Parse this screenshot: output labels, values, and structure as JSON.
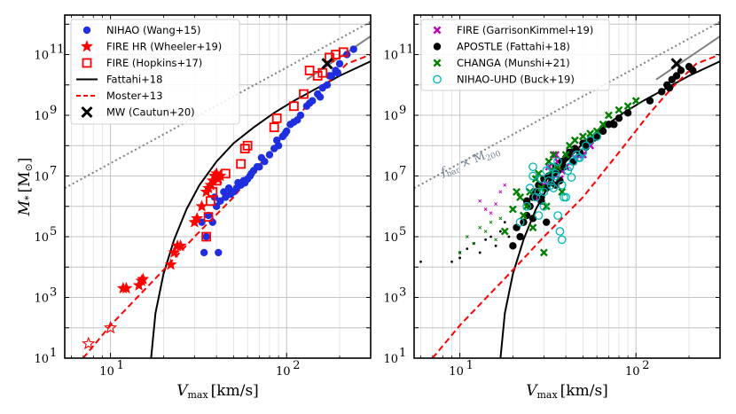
{
  "chart_data": [
    {
      "type": "scatter",
      "xscale": "log",
      "yscale": "log",
      "xlim": [
        5.5,
        300
      ],
      "ylim": [
        10,
        2000000000000.0
      ],
      "xlabel": "V_max [km/s]",
      "ylabel": "M_* [M_⊙]",
      "ylabel_parts": {
        "M": "M",
        "sub": "*",
        "bracket": "[M",
        "sun": "⊙",
        "close": "]"
      },
      "xlabel_parts": {
        "V": "V",
        "sub": "max",
        "unit": "[km/s]"
      },
      "xticks": [
        {
          "v": 10,
          "base": "10",
          "exp": "1"
        },
        {
          "v": 100,
          "base": "10",
          "exp": "2"
        }
      ],
      "yticks": [
        {
          "v": 10,
          "base": "10",
          "exp": "1"
        },
        {
          "v": 1000,
          "base": "10",
          "exp": "3"
        },
        {
          "v": 100000,
          "base": "10",
          "exp": "5"
        },
        {
          "v": 10000000,
          "base": "10",
          "exp": "7"
        },
        {
          "v": 1000000000,
          "base": "10",
          "exp": "9"
        },
        {
          "v": 100000000000,
          "base": "10",
          "exp": "11"
        }
      ],
      "legend": [
        {
          "label": "NIHAO (Wang+15)",
          "marker": "circle",
          "color": "#1f2fe0"
        },
        {
          "label": "FIRE HR (Wheeler+19)",
          "marker": "star",
          "color": "#ff0000"
        },
        {
          "label": "FIRE (Hopkins+17)",
          "marker": "square-open",
          "color": "#ff0000"
        },
        {
          "label": "Fattahi+18",
          "marker": "line",
          "color": "#000000"
        },
        {
          "label": "Moster+13",
          "marker": "dashed",
          "color": "#ff0000"
        },
        {
          "label": "MW (Cautun+20)",
          "marker": "x",
          "color": "#000000"
        }
      ],
      "series": [
        {
          "name": "NIHAO (Wang+15)",
          "marker": "circle",
          "color": "#1f2fe0",
          "x": [
            34,
            35,
            38,
            40,
            42,
            45,
            48,
            50,
            52,
            55,
            58,
            60,
            62,
            65,
            70,
            75,
            80,
            85,
            90,
            95,
            100,
            105,
            110,
            120,
            130,
            140,
            150,
            160,
            170,
            180,
            190,
            200,
            220,
            240,
            36,
            39,
            44,
            47,
            53,
            57,
            63,
            68,
            72,
            88,
            98,
            115,
            135,
            155,
            175,
            195,
            33,
            41
          ],
          "y": [
            30000.0,
            100000.0,
            300000.0,
            1000000.0,
            1500000.0,
            2000000.0,
            2500000.0,
            3000000.0,
            4000000.0,
            5000000.0,
            6000000.0,
            8000000.0,
            10000000.0,
            15000000.0,
            20000000.0,
            30000000.0,
            50000000.0,
            80000000.0,
            100000000.0,
            200000000.0,
            300000000.0,
            500000000.0,
            600000000.0,
            1000000000.0,
            2000000000.0,
            3000000000.0,
            5000000000.0,
            8000000000.0,
            10000000000.0,
            20000000000.0,
            30000000000.0,
            50000000000.0,
            100000000000.0,
            150000000000.0,
            500000.0,
            2000000.0,
            3000000.0,
            4000000.0,
            6000000.0,
            7000000.0,
            12000000.0,
            20000000.0,
            40000000.0,
            150000000.0,
            250000000.0,
            700000000.0,
            2500000000.0,
            4000000000.0,
            20000000000.0,
            25000000000.0,
            300000.0,
            30000.0
          ]
        },
        {
          "name": "FIRE HR (Wheeler+19)",
          "marker": "star",
          "color": "#ff0000",
          "x": [
            11.8,
            12.3,
            14.5,
            15,
            15.3,
            22,
            23,
            24,
            25,
            30,
            31,
            33,
            35,
            36,
            37,
            38,
            39,
            40,
            41,
            42
          ],
          "y": [
            2000.0,
            2000.0,
            2500.0,
            3500.0,
            4000.0,
            12000.0,
            30000.0,
            50000.0,
            50000.0,
            300000.0,
            400000.0,
            1000000.0,
            3000000.0,
            4000000.0,
            5000000.0,
            7000000.0,
            10000000.0,
            12000000.0,
            8000000.0,
            10000000.0
          ]
        },
        {
          "name": "FIRE HR open",
          "marker": "star-open",
          "color": "#ff0000",
          "x": [
            7.5,
            10
          ],
          "y": [
            30,
            100
          ]
        },
        {
          "name": "FIRE (Hopkins+17)",
          "marker": "square-open",
          "color": "#ff0000",
          "x": [
            35,
            36,
            37,
            38,
            40,
            45,
            55,
            58,
            60,
            85,
            88,
            110,
            125,
            135,
            150,
            160,
            175,
            190,
            210
          ],
          "y": [
            100000.0,
            450000.0,
            1500000.0,
            3000000.0,
            7000000.0,
            12000000.0,
            25000000.0,
            80000000.0,
            100000000.0,
            400000000.0,
            800000000.0,
            2000000000.0,
            5000000000.0,
            30000000000.0,
            20000000000.0,
            25000000000.0,
            80000000000.0,
            100000000000.0,
            120000000000.0
          ]
        },
        {
          "name": "MW (Cautun+20)",
          "marker": "x",
          "color": "#000000",
          "x": [
            170
          ],
          "y": [
            50000000000.0
          ]
        }
      ],
      "lines": [
        {
          "name": "Fattahi+18",
          "style": "solid",
          "color": "#000000",
          "x": [
            17,
            18,
            20,
            23,
            27,
            32,
            40,
            50,
            65,
            85,
            110,
            150,
            200,
            300
          ],
          "y": [
            10,
            300,
            6000.0,
            80000.0,
            800000.0,
            5000000.0,
            30000000.0,
            120000000.0,
            400000000.0,
            1200000000.0,
            3000000000.0,
            8000000000.0,
            20000000000.0,
            60000000000.0
          ]
        },
        {
          "name": "Moster+13",
          "style": "dashed",
          "color": "#ff0000",
          "x": [
            7,
            10,
            20,
            30,
            50,
            80,
            120,
            160,
            220,
            300
          ],
          "y": [
            10,
            120,
            8000.0,
            100000.0,
            2000000.0,
            60000000.0,
            1200000000.0,
            8000000000.0,
            50000000000.0,
            100000000000.0
          ]
        },
        {
          "name": "f_bar x M200",
          "style": "dotted",
          "color": "#808080",
          "x": [
            5.5,
            300
          ],
          "y": [
            4000000.0,
            1200000000000.0
          ]
        },
        {
          "name": "gray solid",
          "style": "solid",
          "color": "#808080",
          "x": [
            130,
            300
          ],
          "y": [
            15000000000.0,
            400000000000.0
          ]
        }
      ]
    },
    {
      "type": "scatter",
      "xscale": "log",
      "yscale": "log",
      "xlim": [
        5.5,
        300
      ],
      "ylim": [
        10,
        2000000000000.0
      ],
      "xlabel": "V_max [km/s]",
      "ylabel": "",
      "xlabel_parts": {
        "V": "V",
        "sub": "max",
        "unit": "[km/s]"
      },
      "xticks": [
        {
          "v": 10,
          "base": "10",
          "exp": "1"
        },
        {
          "v": 100,
          "base": "10",
          "exp": "2"
        }
      ],
      "yticks": [
        {
          "v": 10,
          "base": "10",
          "exp": "1"
        },
        {
          "v": 1000,
          "base": "10",
          "exp": "3"
        },
        {
          "v": 100000,
          "base": "10",
          "exp": "5"
        },
        {
          "v": 10000000,
          "base": "10",
          "exp": "7"
        },
        {
          "v": 1000000000,
          "base": "10",
          "exp": "9"
        },
        {
          "v": 100000000000,
          "base": "10",
          "exp": "11"
        }
      ],
      "annotation": {
        "text": "f",
        "sub": "bar",
        "mid": " × M",
        "sub2": "200",
        "x": 8,
        "y": 10000000.0,
        "angle": -22
      },
      "legend": [
        {
          "label": "FIRE (GarrisonKimmel+19)",
          "marker": "x-thin",
          "color": "#c000c0"
        },
        {
          "label": "APOSTLE (Fattahi+18)",
          "marker": "circle",
          "color": "#000000"
        },
        {
          "label": "CHANGA (Munshi+21)",
          "marker": "x-thin",
          "color": "#008000"
        },
        {
          "label": "NIHAO-UHD (Buck+19)",
          "marker": "circle-open",
          "color": "#00b5b5"
        }
      ],
      "series": [
        {
          "name": "FIRE (GarrisonKimmel+19)",
          "marker": "x-thin",
          "color": "#c000c0",
          "x": [
            32,
            33,
            35,
            36,
            38,
            40,
            42,
            45,
            48,
            50,
            55,
            30,
            28,
            34,
            37,
            44
          ],
          "y": [
            20000000.0,
            10000000.0,
            50000000.0,
            30000000.0,
            15000000.0,
            20000000.0,
            60000000.0,
            40000000.0,
            50000000.0,
            50000000.0,
            100000000.0,
            5000000.0,
            2000000.0,
            12000000.0,
            8000000.0,
            30000000.0
          ]
        },
        {
          "name": "APOSTLE (Fattahi+18)",
          "marker": "circle",
          "color": "#000000",
          "x": [
            20,
            21,
            22,
            23,
            24,
            25,
            26,
            27,
            28,
            29,
            30,
            31,
            32,
            33,
            34,
            35,
            36,
            38,
            40,
            42,
            45,
            48,
            50,
            55,
            60,
            65,
            70,
            80,
            90,
            120,
            140,
            150,
            160,
            170,
            180,
            200,
            210,
            24,
            26,
            29,
            31,
            35,
            37,
            39,
            44,
            52,
            58,
            75,
            155
          ],
          "y": [
            50000.0,
            200000.0,
            100000.0,
            300000.0,
            500000.0,
            1000000.0,
            2000000.0,
            3000000.0,
            5000000.0,
            2000000.0,
            8000000.0,
            4000000.0,
            10000000.0,
            6000000.0,
            12000000.0,
            20000000.0,
            15000000.0,
            30000000.0,
            40000000.0,
            60000000.0,
            80000000.0,
            60000000.0,
            120000000.0,
            150000000.0,
            200000000.0,
            300000000.0,
            500000000.0,
            800000000.0,
            1200000000.0,
            3000000000.0,
            6000000000.0,
            10000000000.0,
            15000000000.0,
            20000000000.0,
            30000000000.0,
            40000000000.0,
            30000000000.0,
            1500000.0,
            400000.0,
            1500000.0,
            300000.0,
            5000000.0,
            7000000.0,
            20000000.0,
            30000000.0,
            90000000.0,
            180000000.0,
            500000000.0,
            8000000000.0
          ]
        },
        {
          "name": "APOSTLE small",
          "marker": "dot",
          "color": "#000000",
          "x": [
            6,
            9,
            10,
            10,
            11,
            12,
            13,
            14,
            15,
            16,
            17,
            18,
            19
          ],
          "y": [
            15000.0,
            15000.0,
            20000.0,
            30000.0,
            40000.0,
            60000.0,
            30000.0,
            80000.0,
            100000.0,
            50000.0,
            150000.0,
            300000.0,
            100000.0
          ]
        },
        {
          "name": "CHANGA (Munshi+21)",
          "marker": "x-thin",
          "color": "#008000",
          "x": [
            18,
            20,
            21,
            22,
            23,
            24,
            25,
            26,
            27,
            28,
            29,
            30,
            31,
            32,
            33,
            34,
            36,
            38,
            40,
            42,
            45,
            50,
            55,
            60,
            65,
            70,
            80,
            90,
            100
          ],
          "y": [
            150000.0,
            800000.0,
            3000000.0,
            2000000.0,
            500000.0,
            1000000.0,
            3000000.0,
            200000.0,
            8000000.0,
            12000000.0,
            4000000.0,
            30000.0,
            1000000.0,
            30000000.0,
            15000000.0,
            50000000.0,
            20000000.0,
            3000000.0,
            50000000.0,
            100000000.0,
            150000000.0,
            200000000.0,
            250000000.0,
            300000000.0,
            500000000.0,
            1000000000.0,
            1500000000.0,
            2000000000.0,
            3000000000.0
          ]
        },
        {
          "name": "CHANGA small",
          "marker": "x-small",
          "color": "#008000",
          "x": [
            10,
            11,
            12,
            13,
            14,
            15,
            16,
            17
          ],
          "y": [
            30000.0,
            100000.0,
            60000.0,
            200000.0,
            150000.0,
            300000.0,
            80000.0,
            400000.0
          ]
        },
        {
          "name": "FIRE small",
          "marker": "x-small",
          "color": "#c000c0",
          "x": [
            13,
            14,
            15,
            16,
            17,
            18
          ],
          "y": [
            1500000.0,
            800000.0,
            600000.0,
            1200000.0,
            3000000.0,
            5000000.0
          ]
        },
        {
          "name": "NIHAO-UHD (Buck+19)",
          "marker": "circle-open",
          "color": "#00b5b5",
          "x": [
            22,
            24,
            25,
            26,
            27,
            28,
            29,
            30,
            31,
            32,
            33,
            34,
            35,
            36,
            37,
            38,
            40,
            42,
            44,
            46,
            48,
            50,
            52,
            55,
            60,
            26,
            28,
            30,
            33,
            35,
            38,
            41,
            47,
            36,
            39,
            43
          ],
          "y": [
            300000.0,
            1000000.0,
            4000000.0,
            10000000.0,
            2000000.0,
            500000.0,
            8000000.0,
            3000000.0,
            15000000.0,
            7000000.0,
            20000000.0,
            4000000.0,
            10000000.0,
            30000000.0,
            150000.0,
            80000.0,
            2000000.0,
            20000000.0,
            30000000.0,
            50000000.0,
            40000000.0,
            60000000.0,
            100000000.0,
            150000000.0,
            200000000.0,
            20000000.0,
            3000000.0,
            1000000.0,
            5000000.0,
            12000000.0,
            5000000.0,
            15000000.0,
            40000000.0,
            500000.0,
            2000000.0,
            9000000.0
          ]
        },
        {
          "name": "MW (Cautun+20)",
          "marker": "x",
          "color": "#000000",
          "x": [
            170
          ],
          "y": [
            50000000000.0
          ]
        }
      ],
      "lines": [
        {
          "name": "Fattahi+18",
          "style": "solid",
          "color": "#000000",
          "x": [
            17,
            18,
            20,
            23,
            27,
            32,
            40,
            50,
            65,
            85,
            110,
            150,
            200,
            300
          ],
          "y": [
            10,
            300,
            6000.0,
            80000.0,
            800000.0,
            5000000.0,
            30000000.0,
            120000000.0,
            400000000.0,
            1200000000.0,
            3000000000.0,
            8000000000.0,
            20000000000.0,
            60000000000.0
          ]
        },
        {
          "name": "Moster+13",
          "style": "dashed",
          "color": "#ff0000",
          "x": [
            7,
            10,
            20,
            30,
            50,
            80,
            120,
            160,
            220,
            300
          ],
          "y": [
            10,
            120,
            8000.0,
            100000.0,
            2000000.0,
            60000000.0,
            1200000000.0,
            8000000000.0,
            50000000000.0,
            100000000000.0
          ]
        },
        {
          "name": "f_bar x M200",
          "style": "dotted",
          "color": "#808080",
          "x": [
            5.5,
            300
          ],
          "y": [
            4000000.0,
            1200000000000.0
          ]
        },
        {
          "name": "gray solid",
          "style": "solid",
          "color": "#808080",
          "x": [
            130,
            300
          ],
          "y": [
            15000000000.0,
            400000000000.0
          ]
        }
      ]
    }
  ]
}
